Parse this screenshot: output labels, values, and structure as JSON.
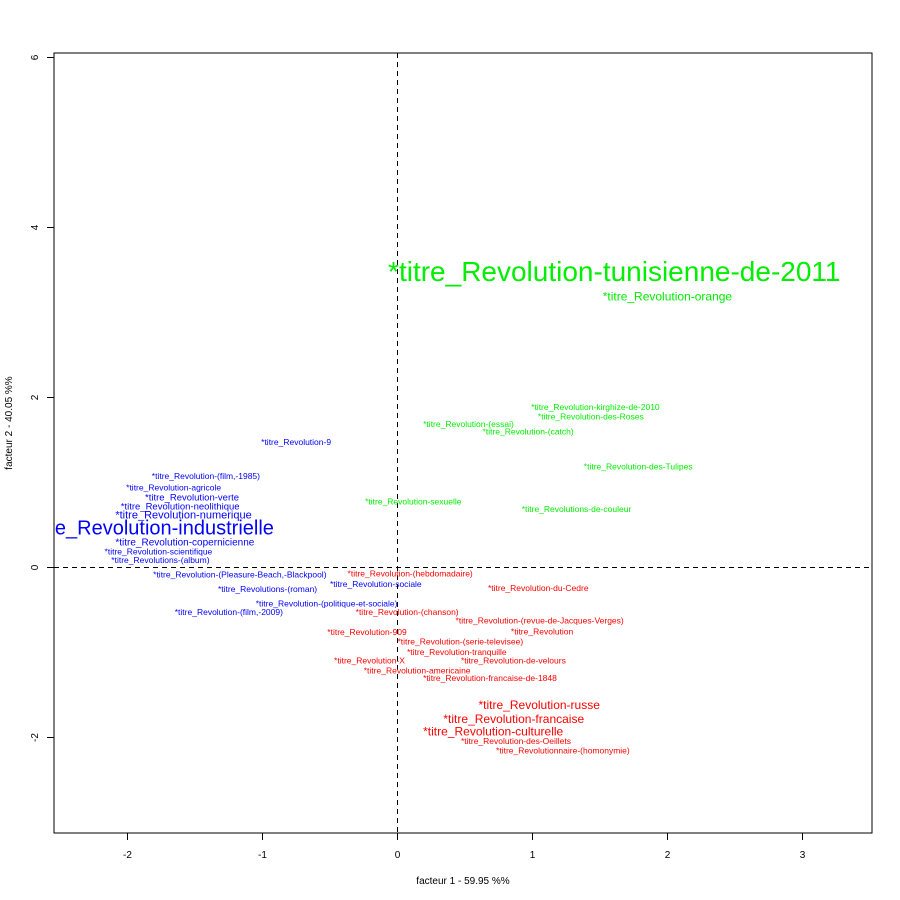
{
  "chart_data": {
    "type": "scatter",
    "title": "",
    "xlabel": "facteur  1  - 59.95 %%",
    "ylabel": "facteur  2  - 40.05 %%",
    "xlim": [
      -2.6,
      3.5
    ],
    "ylim": [
      -3.1,
      6.1
    ],
    "xticks": [
      "-2",
      "-1",
      "0",
      "1",
      "2",
      "3"
    ],
    "yticks": [
      "-2",
      "0",
      "2",
      "4",
      "6"
    ],
    "reference_lines": {
      "x": 0,
      "y": 0,
      "style": "dashed"
    },
    "colors": {
      "blue": "#0000ff",
      "green": "#00ee00",
      "red": "#ff0000",
      "axis": "#000000"
    },
    "points": [
      {
        "label": "*titre_Revolution-tunisienne-de-2011",
        "x": -0.07,
        "y": 3.46,
        "color": "#00ee00",
        "size": 28
      },
      {
        "label": "*titre_Revolution-orange",
        "x": 1.52,
        "y": 3.18,
        "color": "#00ee00",
        "size": 12
      },
      {
        "label": "*titre_Revolution-kirghize-de-2010",
        "x": 0.99,
        "y": 1.88,
        "color": "#00ee00",
        "size": 8.5
      },
      {
        "label": "*titre_Revolution-des-Roses",
        "x": 1.04,
        "y": 1.77,
        "color": "#00ee00",
        "size": 8.5
      },
      {
        "label": "*titre_Revolution-(essai)",
        "x": 0.19,
        "y": 1.68,
        "color": "#00ee00",
        "size": 8.5
      },
      {
        "label": "*titre_Revolution-(catch)",
        "x": 0.63,
        "y": 1.59,
        "color": "#00ee00",
        "size": 8.5
      },
      {
        "label": "*titre_Revolution-des-Tulipes",
        "x": 1.38,
        "y": 1.18,
        "color": "#00ee00",
        "size": 8.5
      },
      {
        "label": "*titre_Revolution-sexuelle",
        "x": -0.24,
        "y": 0.77,
        "color": "#00ee00",
        "size": 8.5
      },
      {
        "label": "*titre_Revolutions-de-couleur",
        "x": 0.92,
        "y": 0.68,
        "color": "#00ee00",
        "size": 8.5
      },
      {
        "label": "*titre_Revolution-9",
        "x": -1.01,
        "y": 1.47,
        "color": "#0000ff",
        "size": 8.5
      },
      {
        "label": "*titre_Revolution-(film,-1985)",
        "x": -1.82,
        "y": 1.07,
        "color": "#0000ff",
        "size": 8.5
      },
      {
        "label": "*titre_Revolution-agricole",
        "x": -2.01,
        "y": 0.93,
        "color": "#0000ff",
        "size": 8.5
      },
      {
        "label": "*titre_Revolution-verte",
        "x": -1.87,
        "y": 0.82,
        "color": "#0000ff",
        "size": 9.5
      },
      {
        "label": "*titre_Revolution-neolithique",
        "x": -2.05,
        "y": 0.71,
        "color": "#0000ff",
        "size": 9.5
      },
      {
        "label": "*titre_Revolution-numerique",
        "x": -2.09,
        "y": 0.61,
        "color": "#0000ff",
        "size": 11
      },
      {
        "label": "*titre_Revolution-industrielle",
        "x": -2.76,
        "y": 0.45,
        "color": "#0000ff",
        "size": 20
      },
      {
        "label": "*titre_Revolution-copernicienne",
        "x": -2.09,
        "y": 0.29,
        "color": "#0000ff",
        "size": 10
      },
      {
        "label": "*titre_Revolution-scientifique",
        "x": -2.17,
        "y": 0.18,
        "color": "#0000ff",
        "size": 8.5
      },
      {
        "label": "*titre_Revolutions-(album)",
        "x": -2.12,
        "y": 0.08,
        "color": "#0000ff",
        "size": 8.5
      },
      {
        "label": "*titre_Revolution-(Pleasure-Beach,-Blackpool)",
        "x": -1.81,
        "y": -0.09,
        "color": "#0000ff",
        "size": 8.5
      },
      {
        "label": "*titre_Revolution-sociale",
        "x": -0.5,
        "y": -0.2,
        "color": "#0000ff",
        "size": 8.5
      },
      {
        "label": "*titre_Revolutions-(roman)",
        "x": -1.33,
        "y": -0.26,
        "color": "#0000ff",
        "size": 8.5
      },
      {
        "label": "*titre_Revolution-(politique-et-sociale)",
        "x": -1.05,
        "y": -0.43,
        "color": "#0000ff",
        "size": 8.5
      },
      {
        "label": "*titre_Revolution-(film,-2009)",
        "x": -1.65,
        "y": -0.53,
        "color": "#0000ff",
        "size": 8.5
      },
      {
        "label": "*titre_Revolution-(hebdomadaire)",
        "x": -0.37,
        "y": -0.08,
        "color": "#ff0000",
        "size": 8.5
      },
      {
        "label": "*titre_Revolution-du-Cedre",
        "x": 0.67,
        "y": -0.25,
        "color": "#ff0000",
        "size": 8.5
      },
      {
        "label": "*titre_Revolution-(chanson)",
        "x": -0.31,
        "y": -0.53,
        "color": "#ff0000",
        "size": 8.5
      },
      {
        "label": "*titre_Revolution-(revue-de-Jacques-Verges)",
        "x": 0.43,
        "y": -0.63,
        "color": "#ff0000",
        "size": 8.5
      },
      {
        "label": "*titre_Revolution-909",
        "x": -0.52,
        "y": -0.77,
        "color": "#ff0000",
        "size": 8.5
      },
      {
        "label": "*titre_Revolution",
        "x": 0.84,
        "y": -0.76,
        "color": "#ff0000",
        "size": 8.5
      },
      {
        "label": "*titre_Revolution-(serie-televisee)",
        "x": 0.0,
        "y": -0.88,
        "color": "#ff0000",
        "size": 8.5
      },
      {
        "label": "*titre_Revolution-tranquille",
        "x": 0.07,
        "y": -1.0,
        "color": "#ff0000",
        "size": 8.5
      },
      {
        "label": "*titre_Revolution-X",
        "x": -0.47,
        "y": -1.1,
        "color": "#ff0000",
        "size": 8.5
      },
      {
        "label": "*titre_Revolution-de-velours",
        "x": 0.47,
        "y": -1.1,
        "color": "#ff0000",
        "size": 8.5
      },
      {
        "label": "*titre_Revolution-americaine",
        "x": -0.25,
        "y": -1.22,
        "color": "#ff0000",
        "size": 8.5
      },
      {
        "label": "*titre_Revolution-francaise-de-1848",
        "x": 0.19,
        "y": -1.31,
        "color": "#ff0000",
        "size": 8.5
      },
      {
        "label": "*titre_Revolution-russe",
        "x": 0.6,
        "y": -1.63,
        "color": "#ff0000",
        "size": 12
      },
      {
        "label": "*titre_Revolution-francaise",
        "x": 0.34,
        "y": -1.79,
        "color": "#ff0000",
        "size": 12
      },
      {
        "label": "*titre_Revolution-culturelle",
        "x": 0.19,
        "y": -1.94,
        "color": "#ff0000",
        "size": 12
      },
      {
        "label": "*titre_Revolution-des-Oeillets",
        "x": 0.47,
        "y": -2.05,
        "color": "#ff0000",
        "size": 8.5
      },
      {
        "label": "*titre_Revolutionnaire-(homonymie)",
        "x": 0.73,
        "y": -2.16,
        "color": "#ff0000",
        "size": 8.5
      }
    ]
  }
}
